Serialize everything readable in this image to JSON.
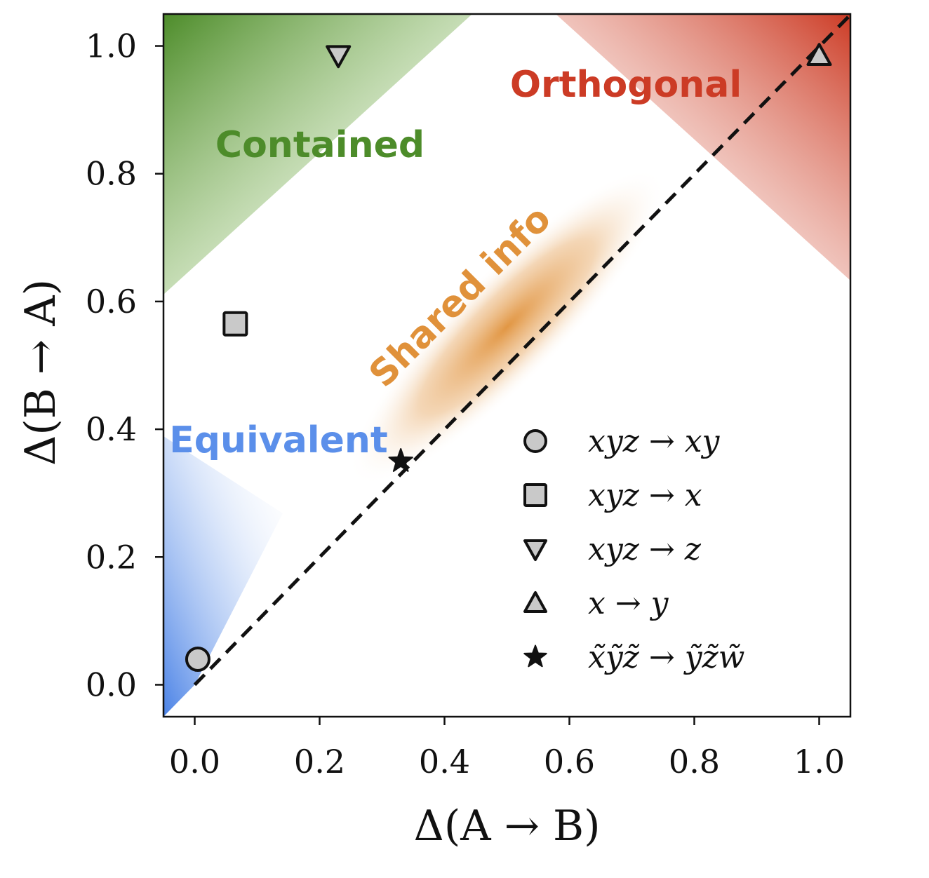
{
  "chart_data": {
    "type": "scatter",
    "xlabel": "Δ(A → B)",
    "ylabel": "Δ(B → A)",
    "xlim": [
      -0.05,
      1.05
    ],
    "ylim": [
      -0.05,
      1.05
    ],
    "x_ticks": [
      "0.0",
      "0.2",
      "0.4",
      "0.6",
      "0.8",
      "1.0"
    ],
    "y_ticks": [
      "0.0",
      "0.2",
      "0.4",
      "0.6",
      "0.8",
      "1.0"
    ],
    "grid": false,
    "legend_position": "bottom-right",
    "reference_line": {
      "from": [
        0,
        0
      ],
      "to": [
        1,
        1
      ],
      "style": "dashed"
    },
    "regions": [
      {
        "label": "Equivalent",
        "color": "#5b8fea"
      },
      {
        "label": "Contained",
        "color": "#4d8c2a"
      },
      {
        "label": "Orthogonal",
        "color": "#cc3b25"
      },
      {
        "label": "Shared info",
        "color": "#e0913a"
      }
    ],
    "series": [
      {
        "name": "xyz → xy",
        "marker": "circle",
        "x": [
          0.005
        ],
        "y": [
          0.04
        ]
      },
      {
        "name": "xyz → x",
        "marker": "square",
        "x": [
          0.065
        ],
        "y": [
          0.565
        ]
      },
      {
        "name": "xyz → z",
        "marker": "triangle-down",
        "x": [
          0.23
        ],
        "y": [
          0.985
        ]
      },
      {
        "name": "x → y",
        "marker": "triangle-up",
        "x": [
          1.0
        ],
        "y": [
          0.985
        ]
      },
      {
        "name": "x̃ỹz̃ → ỹz̃w̃",
        "marker": "star",
        "x": [
          0.33
        ],
        "y": [
          0.35
        ]
      }
    ]
  }
}
